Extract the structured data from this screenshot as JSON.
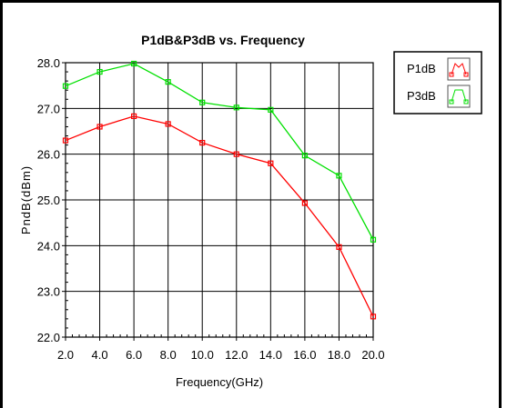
{
  "chart_data": {
    "type": "line",
    "title": "P1dB&P3dB vs. Frequency",
    "xlabel": "Frequency(GHz)",
    "ylabel": "PndB(dBm)",
    "xlim": [
      2.0,
      20.0
    ],
    "ylim": [
      22.0,
      28.0
    ],
    "x_ticks": [
      "2.0",
      "4.0",
      "6.0",
      "8.0",
      "10.0",
      "12.0",
      "14.0",
      "16.0",
      "18.0",
      "20.0"
    ],
    "y_ticks": [
      "22.0",
      "23.0",
      "24.0",
      "25.0",
      "26.0",
      "27.0",
      "28.0"
    ],
    "x": [
      2,
      4,
      6,
      8,
      10,
      12,
      14,
      16,
      18,
      20
    ],
    "grid": true,
    "legend_position": "top-right",
    "series": [
      {
        "name": "P1dB",
        "color": "#ff0000",
        "values": [
          26.3,
          26.6,
          26.83,
          26.66,
          26.25,
          26.0,
          25.8,
          24.93,
          23.97,
          22.45
        ]
      },
      {
        "name": "P3dB",
        "color": "#00e000",
        "values": [
          27.49,
          27.8,
          27.98,
          27.58,
          27.13,
          27.02,
          26.97,
          25.97,
          25.53,
          24.13
        ]
      }
    ]
  }
}
